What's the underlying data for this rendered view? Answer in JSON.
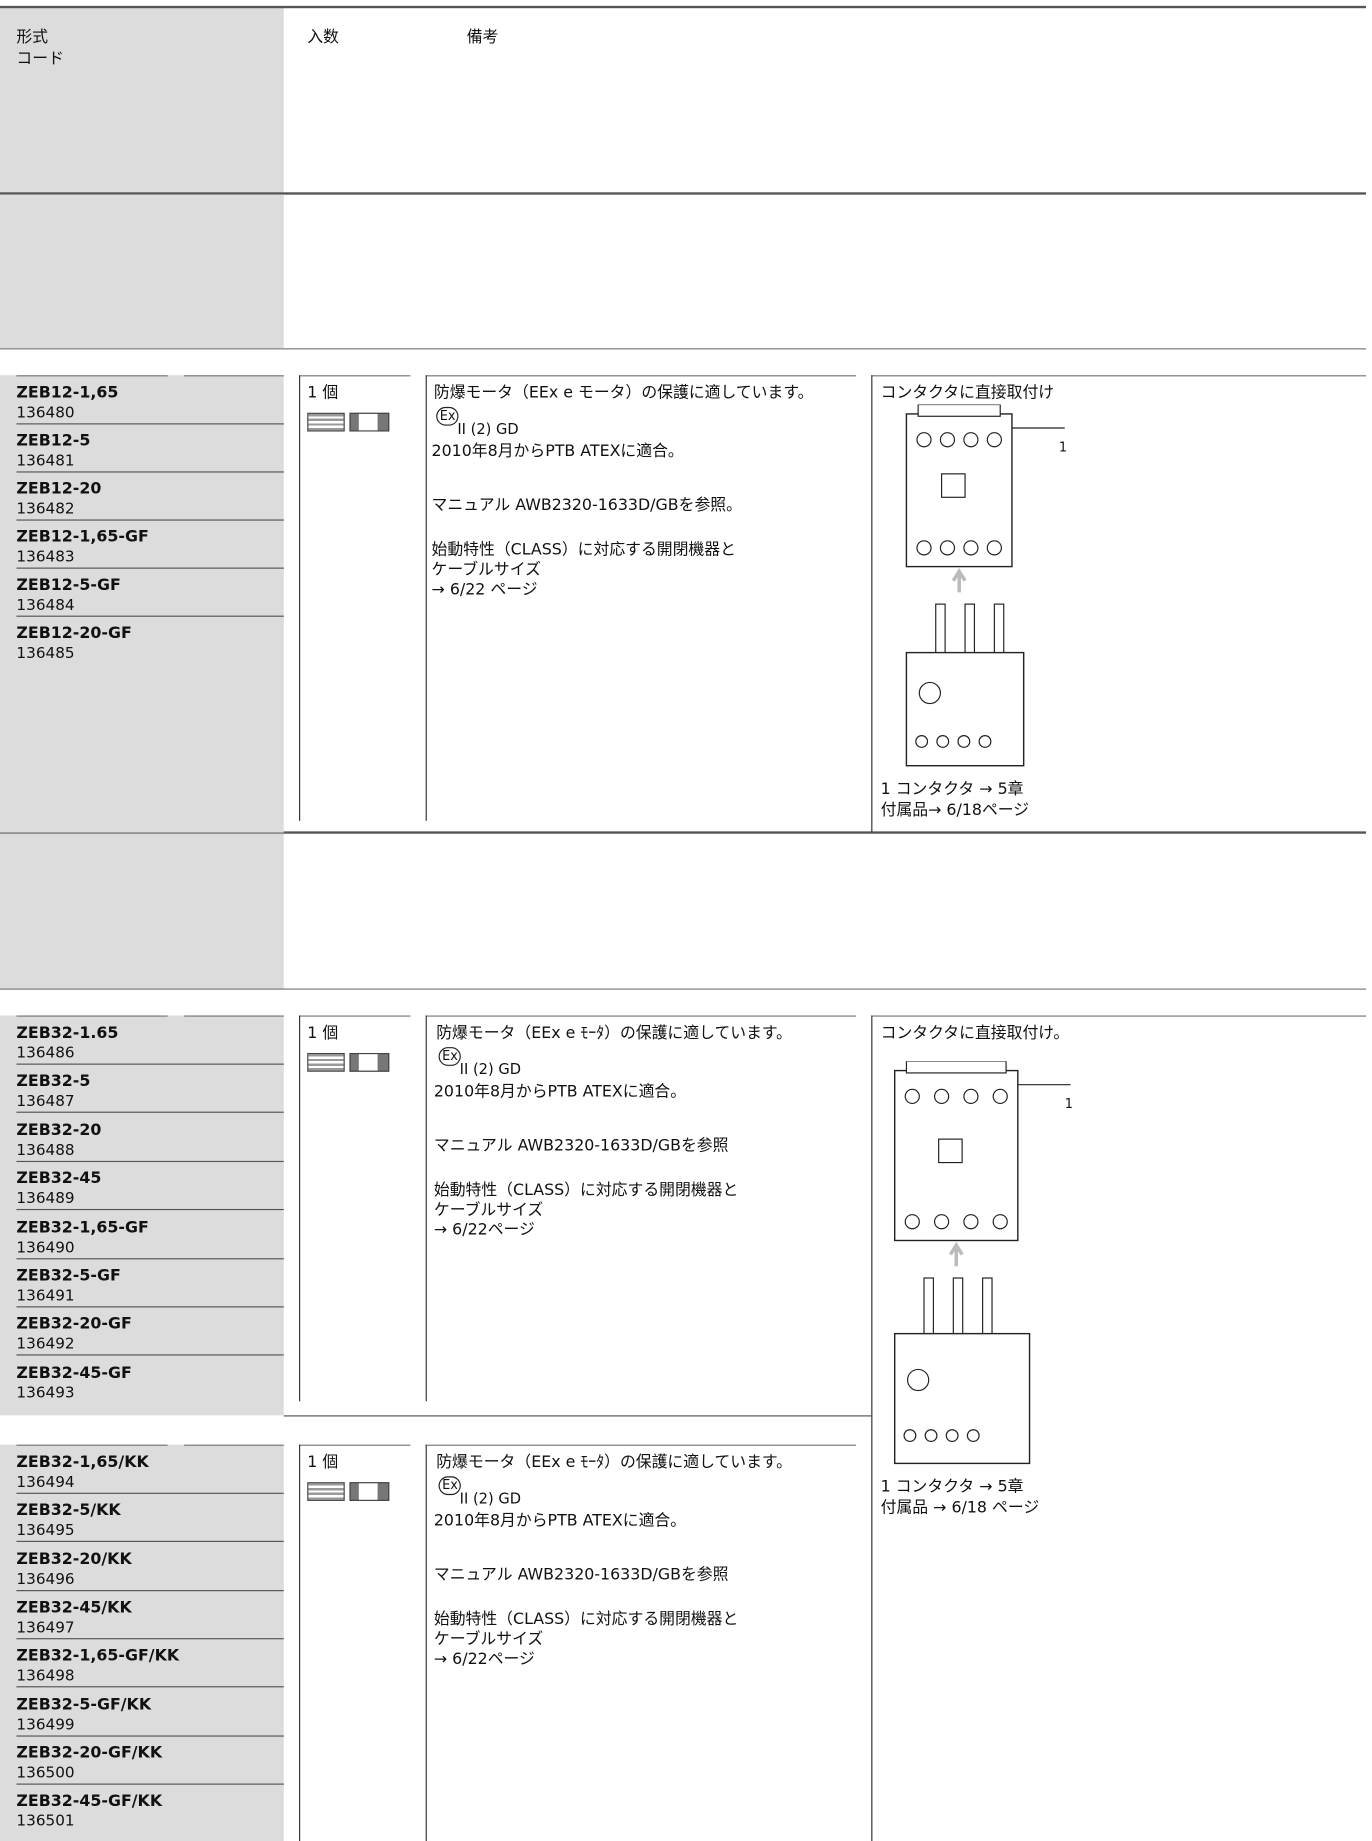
{
  "header": {
    "type_label": "形式",
    "code_label": "コード",
    "qty_label": "入数",
    "remarks_label": "備考"
  },
  "sections": [
    {
      "items": [
        {
          "type": "ZEB12-1,65",
          "code": "136480"
        },
        {
          "type": "ZEB12-5",
          "code": "136481"
        },
        {
          "type": "ZEB12-20",
          "code": "136482"
        },
        {
          "type": "ZEB12-1,65-GF",
          "code": "136483"
        },
        {
          "type": "ZEB12-5-GF",
          "code": "136484"
        },
        {
          "type": "ZEB12-20-GF",
          "code": "136485"
        }
      ],
      "qty": "1 個",
      "remarks": {
        "protection": "防爆モータ（EEx e モータ）の保護に適しています。",
        "ex_mark": "Ex",
        "ex_class": "II (2) GD",
        "atex": "2010年8月からPTB ATEXに適合。",
        "manual": "マニュアル AWB2320-1633D/GBを参照。",
        "class_1": "始動特性（CLASS）に対応する開閉機器と",
        "class_2": "ケーブルサイズ",
        "page_ref": "→ 6/22 ページ"
      },
      "mounting": "コンタクタに直接取付け",
      "figure_label": "1",
      "notes": [
        "1 コンタクタ → 5章",
        "付属品→ 6/18ページ"
      ]
    },
    {
      "items": [
        {
          "type": "ZEB32-1.65",
          "code": "136486"
        },
        {
          "type": "ZEB32-5",
          "code": "136487"
        },
        {
          "type": "ZEB32-20",
          "code": "136488"
        },
        {
          "type": "ZEB32-45",
          "code": "136489"
        },
        {
          "type": "ZEB32-1,65-GF",
          "code": "136490"
        },
        {
          "type": "ZEB32-5-GF",
          "code": "136491"
        },
        {
          "type": "ZEB32-20-GF",
          "code": "136492"
        },
        {
          "type": "ZEB32-45-GF",
          "code": "136493"
        }
      ],
      "qty": "1 個",
      "remarks": {
        "protection": "防爆モータ（EEx e ﾓｰﾀ）の保護に適しています。",
        "ex_mark": "Ex",
        "ex_class": "II (2) GD",
        "atex": "2010年8月からPTB ATEXに適合。",
        "manual": "マニュアル AWB2320-1633D/GBを参照",
        "class_1": "始動特性（CLASS）に対応する開閉機器と",
        "class_2": "ケーブルサイズ",
        "page_ref": "→ 6/22ページ"
      },
      "mounting": "コンタクタに直接取付け。",
      "figure_label": "1",
      "notes": [
        "1 コンタクタ → 5章",
        "付属品 → 6/18 ページ"
      ]
    },
    {
      "items": [
        {
          "type": "ZEB32-1,65/KK",
          "code": "136494"
        },
        {
          "type": "ZEB32-5/KK",
          "code": "136495"
        },
        {
          "type": "ZEB32-20/KK",
          "code": "136496"
        },
        {
          "type": "ZEB32-45/KK",
          "code": "136497"
        },
        {
          "type": "ZEB32-1,65-GF/KK",
          "code": "136498"
        },
        {
          "type": "ZEB32-5-GF/KK",
          "code": "136499"
        },
        {
          "type": "ZEB32-20-GF/KK",
          "code": "136500"
        },
        {
          "type": "ZEB32-45-GF/KK",
          "code": "136501"
        }
      ],
      "qty": "1 個",
      "remarks": {
        "protection": "防爆モータ（EEx e ﾓｰﾀ）の保護に適しています。",
        "ex_mark": "Ex",
        "ex_class": "II (2) GD",
        "atex": "2010年8月からPTB ATEXに適合。",
        "manual": "マニュアル AWB2320-1633D/GBを参照",
        "class_1": "始動特性（CLASS）に対応する開閉機器と",
        "class_2": "ケーブルサイズ",
        "page_ref": "→ 6/22ページ"
      }
    }
  ]
}
